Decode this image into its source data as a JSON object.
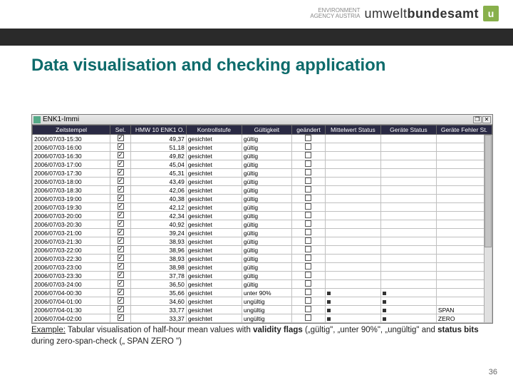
{
  "logo": {
    "small1": "ENVIRONMENT",
    "small2": "AGENCY AUSTRIA",
    "main_light": "umwelt",
    "main_bold": "bundesamt",
    "u": "u"
  },
  "title": "Data visualisation and checking application",
  "window_title": "ENK1-Immi",
  "columns": [
    "Zeitstempel",
    "Sel.",
    "HMW 10 ENK1 O.",
    "Kontrollstufe",
    "Gültigkeit",
    "geändert",
    "Mittelwert Status",
    "Geräte Status",
    "Geräte Fehler St."
  ],
  "rows": [
    {
      "ts": "2006/07/03-15:30",
      "sel": true,
      "val": "49,37",
      "ks": "gesichtet",
      "gu": "gültig",
      "ge": false,
      "m": "",
      "g": "",
      "f": ""
    },
    {
      "ts": "2006/07/03-16:00",
      "sel": true,
      "val": "51,18",
      "ks": "gesichtet",
      "gu": "gültig",
      "ge": false,
      "m": "",
      "g": "",
      "f": ""
    },
    {
      "ts": "2006/07/03-16:30",
      "sel": true,
      "val": "49,82",
      "ks": "gesichtet",
      "gu": "gültig",
      "ge": false,
      "m": "",
      "g": "",
      "f": ""
    },
    {
      "ts": "2006/07/03-17:00",
      "sel": true,
      "val": "45,04",
      "ks": "gesichtet",
      "gu": "gültig",
      "ge": false,
      "m": "",
      "g": "",
      "f": ""
    },
    {
      "ts": "2006/07/03-17:30",
      "sel": true,
      "val": "45,31",
      "ks": "gesichtet",
      "gu": "gültig",
      "ge": false,
      "m": "",
      "g": "",
      "f": ""
    },
    {
      "ts": "2006/07/03-18:00",
      "sel": true,
      "val": "43,49",
      "ks": "gesichtet",
      "gu": "gültig",
      "ge": false,
      "m": "",
      "g": "",
      "f": ""
    },
    {
      "ts": "2006/07/03-18:30",
      "sel": true,
      "val": "42,06",
      "ks": "gesichtet",
      "gu": "gültig",
      "ge": false,
      "m": "",
      "g": "",
      "f": ""
    },
    {
      "ts": "2006/07/03-19:00",
      "sel": true,
      "val": "40,38",
      "ks": "gesichtet",
      "gu": "gültig",
      "ge": false,
      "m": "",
      "g": "",
      "f": ""
    },
    {
      "ts": "2006/07/03-19:30",
      "sel": true,
      "val": "42,12",
      "ks": "gesichtet",
      "gu": "gültig",
      "ge": false,
      "m": "",
      "g": "",
      "f": ""
    },
    {
      "ts": "2006/07/03-20:00",
      "sel": true,
      "val": "42,34",
      "ks": "gesichtet",
      "gu": "gültig",
      "ge": false,
      "m": "",
      "g": "",
      "f": ""
    },
    {
      "ts": "2006/07/03-20:30",
      "sel": true,
      "val": "40,92",
      "ks": "gesichtet",
      "gu": "gültig",
      "ge": false,
      "m": "",
      "g": "",
      "f": ""
    },
    {
      "ts": "2006/07/03-21:00",
      "sel": true,
      "val": "39,24",
      "ks": "gesichtet",
      "gu": "gültig",
      "ge": false,
      "m": "",
      "g": "",
      "f": ""
    },
    {
      "ts": "2006/07/03-21:30",
      "sel": true,
      "val": "38,93",
      "ks": "gesichtet",
      "gu": "gültig",
      "ge": false,
      "m": "",
      "g": "",
      "f": ""
    },
    {
      "ts": "2006/07/03-22:00",
      "sel": true,
      "val": "38,96",
      "ks": "gesichtet",
      "gu": "gültig",
      "ge": false,
      "m": "",
      "g": "",
      "f": ""
    },
    {
      "ts": "2006/07/03-22:30",
      "sel": true,
      "val": "38,93",
      "ks": "gesichtet",
      "gu": "gültig",
      "ge": false,
      "m": "",
      "g": "",
      "f": ""
    },
    {
      "ts": "2006/07/03-23:00",
      "sel": true,
      "val": "38,98",
      "ks": "gesichtet",
      "gu": "gültig",
      "ge": false,
      "m": "",
      "g": "",
      "f": ""
    },
    {
      "ts": "2006/07/03-23:30",
      "sel": true,
      "val": "37,78",
      "ks": "gesichtet",
      "gu": "gültig",
      "ge": false,
      "m": "",
      "g": "",
      "f": ""
    },
    {
      "ts": "2006/07/03-24:00",
      "sel": true,
      "val": "36,50",
      "ks": "gesichtet",
      "gu": "gültig",
      "ge": false,
      "m": "",
      "g": "",
      "f": ""
    },
    {
      "ts": "2006/07/04-00:30",
      "sel": true,
      "val": "35,66",
      "ks": "gesichtet",
      "gu": "unter 90%",
      "ge": false,
      "m": "•",
      "g": "•",
      "f": ""
    },
    {
      "ts": "2006/07/04-01:00",
      "sel": true,
      "val": "34,60",
      "ks": "gesichtet",
      "gu": "ungültig",
      "ge": false,
      "m": "•",
      "g": "•",
      "f": ""
    },
    {
      "ts": "2006/07/04-01:30",
      "sel": true,
      "val": "33,77",
      "ks": "gesichtet",
      "gu": "ungültig",
      "ge": false,
      "m": "•",
      "g": "•",
      "f": "SPAN"
    },
    {
      "ts": "2006/07/04-02:00",
      "sel": true,
      "val": "33,37",
      "ks": "gesichtet",
      "gu": "ungültig",
      "ge": false,
      "m": "•",
      "g": "•",
      "f": "ZERO"
    }
  ],
  "caption_parts": {
    "p1": "Example:",
    "p2": " Tabular visualisation of half-hour mean values with ",
    "p3": "validity flags",
    "p4": " („gültig\", „unter 90%\", „ungültig\" and ",
    "p5": "status bits",
    "p6": " during zero-span-check („ SPAN ZERO \")"
  },
  "page_number": "36",
  "colors": {
    "title": "#0d6b6b",
    "header_bg": "#2a2a44",
    "band": "#2a2a2a"
  }
}
